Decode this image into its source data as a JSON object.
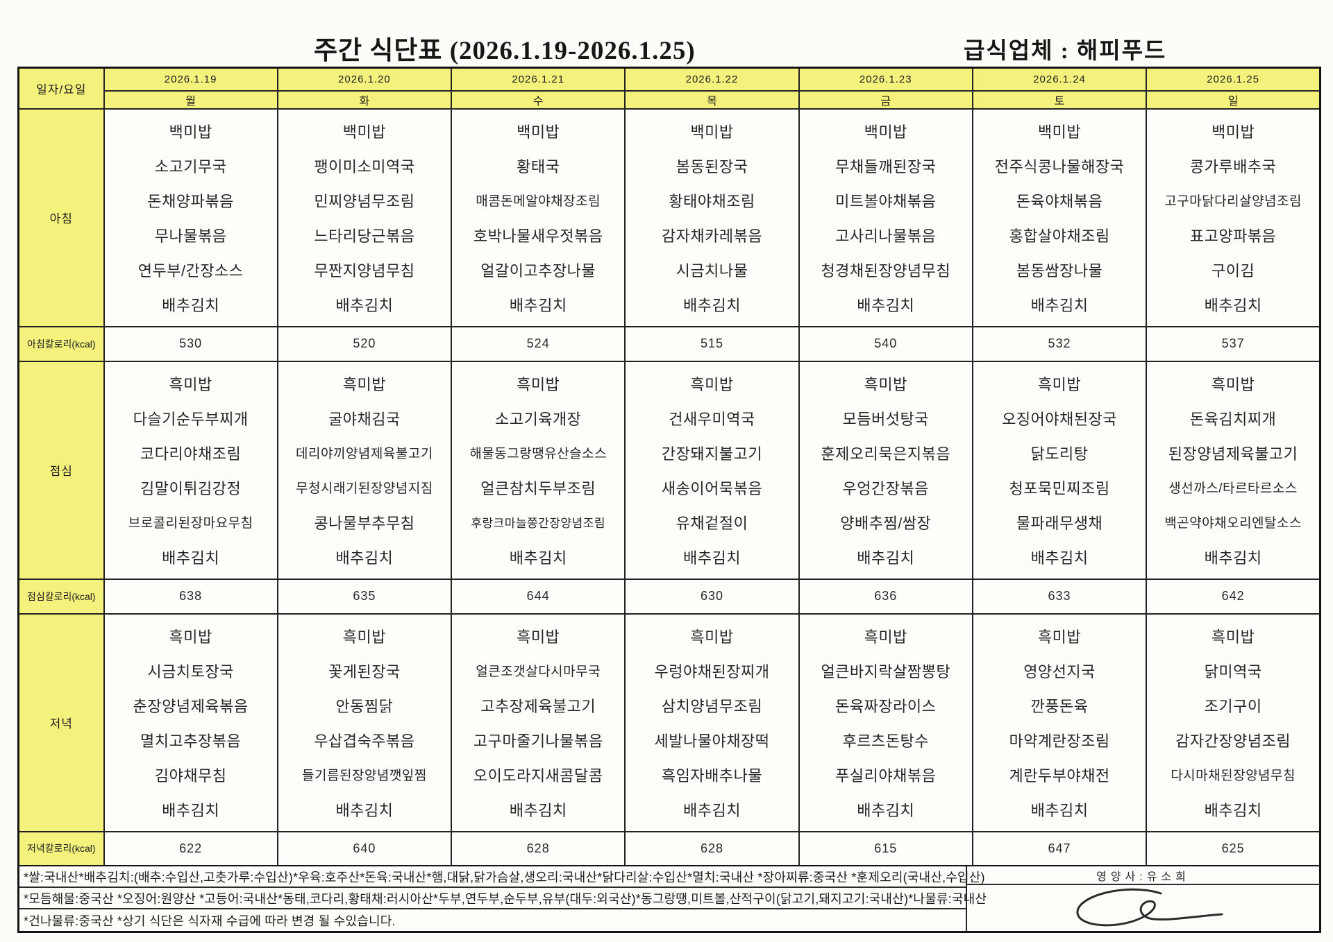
{
  "title": "주간 식단표 (2026.1.19-2026.1.25)",
  "vendor": "급식업체 : 해피푸드",
  "table": {
    "corner_label": "일자/요일",
    "dates": [
      "2026.1.19",
      "2026.1.20",
      "2026.1.21",
      "2026.1.22",
      "2026.1.23",
      "2026.1.24",
      "2026.1.25"
    ],
    "days": [
      "월",
      "화",
      "수",
      "목",
      "금",
      "토",
      "일"
    ],
    "sections": [
      {
        "label": "아침",
        "calorie_label": "아침칼로리(kcal)",
        "calories": [
          "530",
          "520",
          "524",
          "515",
          "540",
          "532",
          "537"
        ],
        "menus": [
          [
            "백미밥",
            "소고기무국",
            "돈채양파볶음",
            "무나물볶음",
            "연두부/간장소스",
            "배추김치"
          ],
          [
            "백미밥",
            "팽이미소미역국",
            "민찌양념무조림",
            "느타리당근볶음",
            "무짠지양념무침",
            "배추김치"
          ],
          [
            "백미밥",
            "황태국",
            "매콤돈메알야채장조림",
            "호박나물새우젓볶음",
            "얼갈이고추장나물",
            "배추김치"
          ],
          [
            "백미밥",
            "봄동된장국",
            "황태야채조림",
            "감자채카레볶음",
            "시금치나물",
            "배추김치"
          ],
          [
            "백미밥",
            "무채들깨된장국",
            "미트볼야채볶음",
            "고사리나물볶음",
            "청경채된장양념무침",
            "배추김치"
          ],
          [
            "백미밥",
            "전주식콩나물해장국",
            "돈육야채볶음",
            "홍합살야채조림",
            "봄동쌈장나물",
            "배추김치"
          ],
          [
            "백미밥",
            "콩가루배추국",
            "고구마닭다리살양념조림",
            "표고양파볶음",
            "구이김",
            "배추김치"
          ]
        ]
      },
      {
        "label": "점심",
        "calorie_label": "점심칼로리(kcal)",
        "calories": [
          "638",
          "635",
          "644",
          "630",
          "636",
          "633",
          "642"
        ],
        "menus": [
          [
            "흑미밥",
            "다슬기순두부찌개",
            "코다리야채조림",
            "김말이튀김강정",
            "브로콜리된장마요무침",
            "배추김치"
          ],
          [
            "흑미밥",
            "굴야채김국",
            "데리야끼양념제육불고기",
            "무청시래기된장양념지짐",
            "콩나물부추무침",
            "배추김치"
          ],
          [
            "흑미밥",
            "소고기육개장",
            "해물동그랑땡유산슬소스",
            "얼큰참치두부조림",
            "후랑크마늘쫑간장양념조림",
            "배추김치"
          ],
          [
            "흑미밥",
            "건새우미역국",
            "간장돼지불고기",
            "새송이어묵볶음",
            "유채겉절이",
            "배추김치"
          ],
          [
            "흑미밥",
            "모듬버섯탕국",
            "훈제오리묵은지볶음",
            "우엉간장볶음",
            "양배추찜/쌈장",
            "배추김치"
          ],
          [
            "흑미밥",
            "오징어야채된장국",
            "닭도리탕",
            "청포묵민찌조림",
            "물파래무생채",
            "배추김치"
          ],
          [
            "흑미밥",
            "돈육김치찌개",
            "된장양념제육불고기",
            "생선까스/타르타르소스",
            "백곤약야채오리엔탈소스",
            "배추김치"
          ]
        ]
      },
      {
        "label": "저녁",
        "calorie_label": "저녁칼로리(kcal)",
        "calories": [
          "622",
          "640",
          "628",
          "628",
          "615",
          "647",
          "625"
        ],
        "menus": [
          [
            "흑미밥",
            "시금치토장국",
            "춘장양념제육볶음",
            "멸치고추장볶음",
            "김야채무침",
            "배추김치"
          ],
          [
            "흑미밥",
            "꽃게된장국",
            "안동찜닭",
            "우삽겹숙주볶음",
            "들기름된장양념깻잎찜",
            "배추김치"
          ],
          [
            "흑미밥",
            "얼큰조갯살다시마무국",
            "고추장제육불고기",
            "고구마줄기나물볶음",
            "오이도라지새콤달콤",
            "배추김치"
          ],
          [
            "흑미밥",
            "우렁야채된장찌개",
            "삼치양념무조림",
            "세발나물야채장떡",
            "흑임자배추나물",
            "배추김치"
          ],
          [
            "흑미밥",
            "얼큰바지락살짬뽕탕",
            "돈육짜장라이스",
            "후르츠돈탕수",
            "푸실리야채볶음",
            "배추김치"
          ],
          [
            "흑미밥",
            "영양선지국",
            "깐풍돈육",
            "마약계란장조림",
            "계란두부야채전",
            "배추김치"
          ],
          [
            "흑미밥",
            "닭미역국",
            "조기구이",
            "감자간장양념조림",
            "다시마채된장양념무침",
            "배추김치"
          ]
        ]
      }
    ]
  },
  "footer": {
    "notes": [
      "*쌀:국내산*배추김치:(배추:수입산,고춧가루:수입산)*우육:호주산*돈육:국내산*햄,대닭,닭가슴살,생오리:국내산*닭다리살:수입산*멸치:국내산 *장아찌류:중국산 *훈제오리(국내산,수입산)",
      "*모듬해물:중국산 *오징어:원양산 *고등어:국내산*동태,코다리,황태채:러시아산*두부,연두부,순두부,유부(대두:외국산)*동그랑땡,미트볼,산적구이(닭고기,돼지고기:국내산)*나물류:국내산",
      "*건나물류:중국산  *상기 식단은 식자재 수급에 따라 변경 될 수있습니다."
    ],
    "nutritionist": "영양사:유소희"
  },
  "colors": {
    "header_yellow": "#f4f17c",
    "border": "#232323",
    "paper": "#fdfdfa"
  }
}
